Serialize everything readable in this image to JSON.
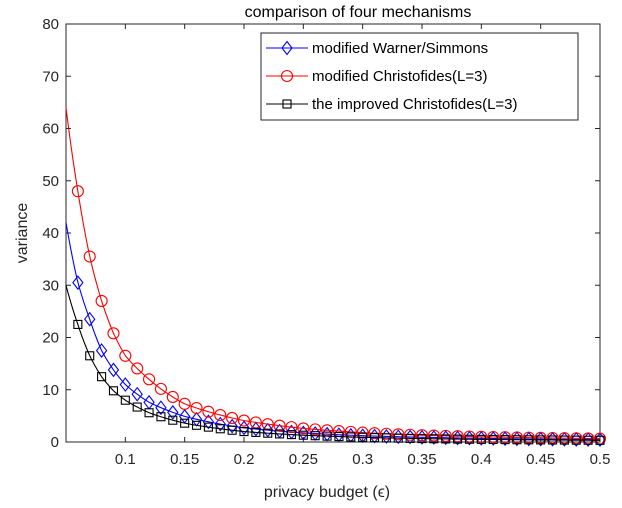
{
  "chart_data": {
    "type": "line",
    "title": "comparison of four mechanisms",
    "xlabel": "privacy budget (ϵ)",
    "ylabel": "variance",
    "xlim": [
      0.05,
      0.5
    ],
    "ylim": [
      0,
      80
    ],
    "xticks": [
      0.1,
      0.15,
      0.2,
      0.25,
      0.3,
      0.35,
      0.4,
      0.45,
      0.5
    ],
    "xtick_labels": [
      "0.1",
      "0.15",
      "0.2",
      "0.25",
      "0.3",
      "0.35",
      "0.4",
      "0.45",
      "0.5"
    ],
    "yticks": [
      0,
      10,
      20,
      30,
      40,
      50,
      60,
      70,
      80
    ],
    "ytick_labels": [
      "0",
      "10",
      "20",
      "30",
      "40",
      "50",
      "60",
      "70",
      "80"
    ],
    "grid": false,
    "legend_position": "top-right",
    "marker_x_start": 0.06,
    "marker_x_step": 0.01,
    "series": [
      {
        "name": "modified Warner/Simmons",
        "color": "#0000ff",
        "marker": "diamond",
        "x": [
          0.05,
          0.06,
          0.07,
          0.08,
          0.09,
          0.1,
          0.12,
          0.15,
          0.2,
          0.25,
          0.3,
          0.35,
          0.4,
          0.45,
          0.5
        ],
        "y": [
          42,
          30.5,
          23.5,
          17.5,
          13.8,
          11,
          7.6,
          4.9,
          2.7,
          1.75,
          1.2,
          0.9,
          0.7,
          0.55,
          0.45
        ]
      },
      {
        "name": "modified Christofides(L=3)",
        "color": "#ff0000",
        "marker": "circle",
        "x": [
          0.05,
          0.06,
          0.07,
          0.08,
          0.09,
          0.1,
          0.12,
          0.15,
          0.2,
          0.25,
          0.3,
          0.35,
          0.4,
          0.45,
          0.5
        ],
        "y": [
          64,
          48,
          35.5,
          27,
          20.8,
          16.5,
          12,
          7.3,
          4.1,
          2.6,
          1.8,
          1.3,
          1.0,
          0.8,
          0.65
        ]
      },
      {
        "name": "the improved Christofides(L=3)",
        "color": "#000000",
        "marker": "square",
        "x": [
          0.05,
          0.06,
          0.07,
          0.08,
          0.09,
          0.1,
          0.12,
          0.15,
          0.2,
          0.25,
          0.3,
          0.35,
          0.4,
          0.45,
          0.5
        ],
        "y": [
          30,
          22.5,
          16.5,
          12.5,
          9.8,
          8,
          5.6,
          3.6,
          2.0,
          1.3,
          0.9,
          0.65,
          0.5,
          0.4,
          0.32
        ]
      }
    ]
  }
}
